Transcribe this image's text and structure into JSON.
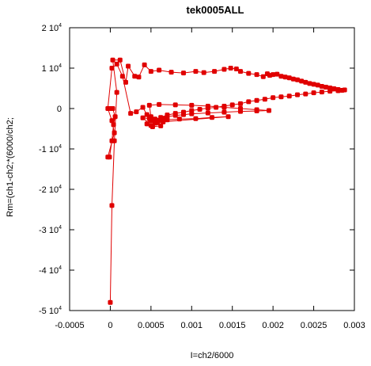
{
  "chart_data": {
    "type": "scatter",
    "title": "tek0005ALL",
    "xlabel": "I=ch2/6000",
    "ylabel": "Rm=(ch1-ch2;*(6000/ch2;",
    "xlim": [
      -0.0005,
      0.003
    ],
    "ylim": [
      -50000,
      20000
    ],
    "grid": false,
    "legend": "none",
    "x_ticks": [
      {
        "value": -0.0005,
        "label": "-0.0005"
      },
      {
        "value": 0,
        "label": "0"
      },
      {
        "value": 0.0005,
        "label": "0.0005"
      },
      {
        "value": 0.001,
        "label": "0.001"
      },
      {
        "value": 0.0015,
        "label": "0.0015"
      },
      {
        "value": 0.002,
        "label": "0.002"
      },
      {
        "value": 0.0025,
        "label": "0.0025"
      },
      {
        "value": 0.003,
        "label": "0.003"
      }
    ],
    "y_ticks": [
      {
        "value": 20000,
        "mant": "2 10",
        "exp": "4"
      },
      {
        "value": 10000,
        "mant": "1 10",
        "exp": "4"
      },
      {
        "value": 0,
        "mant": "0",
        "exp": ""
      },
      {
        "value": -10000,
        "mant": "-1 10",
        "exp": "4"
      },
      {
        "value": -20000,
        "mant": "-2 10",
        "exp": "4"
      },
      {
        "value": -30000,
        "mant": "-3 10",
        "exp": "4"
      },
      {
        "value": -40000,
        "mant": "-4 10",
        "exp": "4"
      },
      {
        "value": -50000,
        "mant": "-5 10",
        "exp": "4"
      }
    ],
    "series": [
      {
        "color": "#e00000",
        "marker": "filled-square",
        "points": [
          [
            0,
            -48000
          ],
          [
            2e-05,
            -24000
          ],
          [
            5e-05,
            -8000
          ],
          [
            8e-05,
            4000
          ],
          [
            3e-05,
            12000
          ],
          [
            0.00012,
            12000
          ],
          [
            0.00019,
            6500
          ],
          [
            0.00022,
            10500
          ],
          [
            0.0003,
            8000
          ],
          [
            0.00035,
            7800
          ],
          [
            0.00042,
            10800
          ],
          [
            0.0005,
            9200
          ],
          [
            0.0006,
            9500
          ],
          [
            0.00075,
            9000
          ],
          [
            0.0009,
            8800
          ],
          [
            0.00105,
            9200
          ],
          [
            0.00115,
            8900
          ],
          [
            0.00128,
            9200
          ],
          [
            0.0014,
            9700
          ],
          [
            0.00148,
            10000
          ],
          [
            0.00155,
            9800
          ],
          [
            0.0016,
            9200
          ],
          [
            0.0017,
            8700
          ],
          [
            0.0018,
            8400
          ],
          [
            0.00188,
            7900
          ],
          [
            0.00193,
            8600
          ],
          [
            0.00196,
            8200
          ],
          [
            0.002,
            8400
          ],
          [
            0.00205,
            8500
          ],
          [
            0.0021,
            8000
          ],
          [
            0.00215,
            7800
          ],
          [
            0.0022,
            7600
          ],
          [
            0.00225,
            7300
          ],
          [
            0.0023,
            7100
          ],
          [
            0.00235,
            6800
          ],
          [
            0.0024,
            6500
          ],
          [
            0.00245,
            6200
          ],
          [
            0.0025,
            6000
          ],
          [
            0.00255,
            5800
          ],
          [
            0.0026,
            5500
          ],
          [
            0.00265,
            5300
          ],
          [
            0.0027,
            5100
          ],
          [
            0.00275,
            4900
          ],
          [
            0.0028,
            4700
          ],
          [
            0.00285,
            4500
          ],
          [
            0.00288,
            4600
          ],
          [
            0.0028,
            4400
          ],
          [
            0.0027,
            4300
          ],
          [
            0.0026,
            4100
          ],
          [
            0.0025,
            3900
          ],
          [
            0.0024,
            3600
          ],
          [
            0.0023,
            3400
          ],
          [
            0.0022,
            3100
          ],
          [
            0.0021,
            2900
          ],
          [
            0.002,
            2700
          ],
          [
            0.0019,
            2300
          ],
          [
            0.0018,
            2000
          ],
          [
            0.0017,
            1700
          ],
          [
            0.0016,
            1200
          ],
          [
            0.0015,
            900
          ],
          [
            0.0014,
            600
          ],
          [
            0.0013,
            300
          ],
          [
            0.0012,
            100
          ],
          [
            0.0011,
            -200
          ],
          [
            0.001,
            -500
          ],
          [
            0.0009,
            -900
          ],
          [
            0.0008,
            -1200
          ],
          [
            0.0007,
            -1600
          ],
          [
            0.00062,
            -2200
          ],
          [
            0.00055,
            -2600
          ],
          [
            0.0005,
            -2000
          ],
          [
            0.00048,
            800
          ],
          [
            0.0006,
            1000
          ],
          [
            0.0008,
            900
          ],
          [
            0.001,
            800
          ],
          [
            0.0012,
            600
          ],
          [
            0.0014,
            300
          ],
          [
            0.0016,
            0
          ],
          [
            0.0018,
            -300
          ],
          [
            0.00195,
            -500
          ],
          [
            0.0018,
            -600
          ],
          [
            0.0016,
            -700
          ],
          [
            0.0014,
            -900
          ],
          [
            0.0012,
            -1100
          ],
          [
            0.001,
            -1300
          ],
          [
            0.0009,
            -1500
          ],
          [
            0.0008,
            -1700
          ],
          [
            0.0007,
            -2000
          ],
          [
            0.00065,
            -2400
          ],
          [
            0.0006,
            -3000
          ],
          [
            0.00055,
            -3600
          ],
          [
            0.0005,
            -4200
          ],
          [
            0.00045,
            -3800
          ],
          [
            0.00048,
            -2500
          ],
          [
            0.0004,
            -2300
          ],
          [
            0.00052,
            -4500
          ],
          [
            0.00062,
            -4300
          ],
          [
            0.00058,
            -3500
          ],
          [
            0.0007,
            -2800
          ],
          [
            0.00085,
            -2600
          ],
          [
            0.00105,
            -2500
          ],
          [
            0.00125,
            -2200
          ],
          [
            0.00145,
            -2000
          ],
          [
            0.00065,
            -3300
          ],
          [
            0.0005,
            -3000
          ],
          [
            0.00045,
            -1500
          ],
          [
            0.0004,
            300
          ],
          [
            0.00032,
            -800
          ],
          [
            0.00025,
            -1200
          ],
          [
            0.00015,
            8000
          ],
          [
            8e-05,
            11000
          ],
          [
            2e-05,
            10000
          ],
          [
            -3e-05,
            0
          ],
          [
            2e-05,
            -3000
          ],
          [
            5e-05,
            -6000
          ],
          [
            -3e-05,
            -12000
          ],
          [
            -1e-05,
            -12000
          ],
          [
            2e-05,
            -8000
          ],
          [
            4e-05,
            -4000
          ],
          [
            6e-05,
            -2000
          ],
          [
            3e-05,
            0
          ],
          [
            1e-05,
            0
          ]
        ]
      }
    ]
  }
}
